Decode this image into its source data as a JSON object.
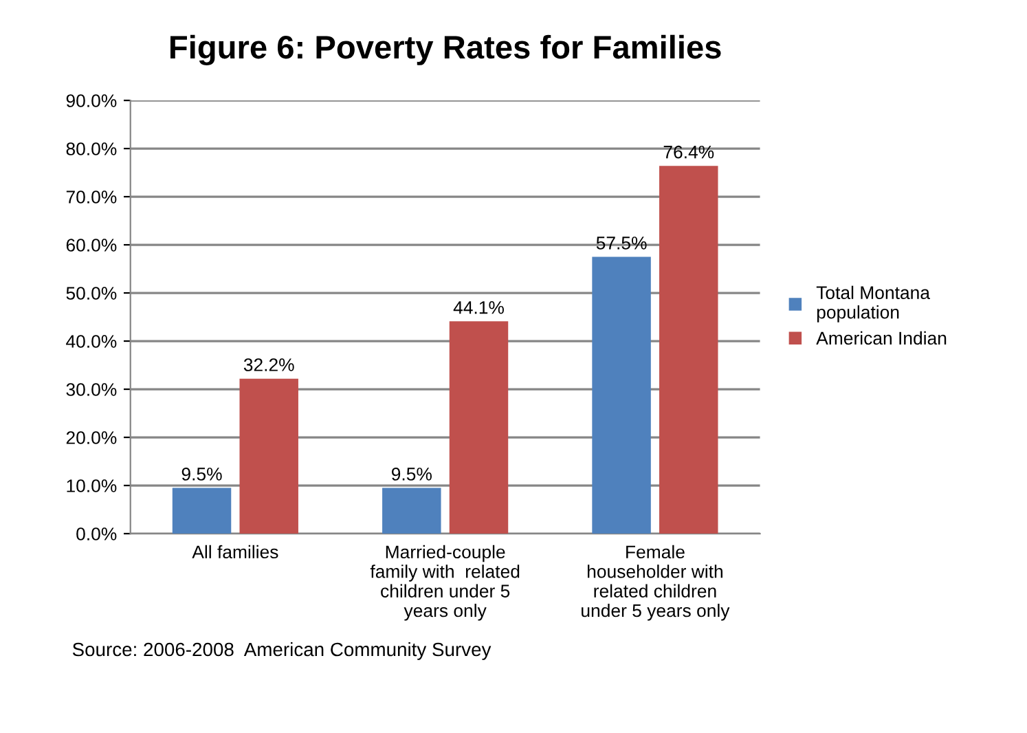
{
  "chart_data": {
    "type": "bar",
    "title": "Figure 6: Poverty Rates for Families",
    "categories": [
      "All families",
      "Married-couple\nfamily with  related\nchildren under 5\nyears only",
      "Female\nhouseholder with\nrelated children\nunder 5 years only"
    ],
    "series": [
      {
        "name": "Total Montana\npopulation",
        "color": "#4f81bd",
        "values": [
          9.5,
          9.5,
          57.5
        ],
        "value_labels": [
          "9.5%",
          "9.5%",
          "57.5%"
        ]
      },
      {
        "name": "American Indian",
        "color": "#c0504d",
        "values": [
          32.2,
          44.1,
          76.4
        ],
        "value_labels": [
          "32.2%",
          "44.1%",
          "76.4%"
        ]
      }
    ],
    "ylim": [
      0,
      90
    ],
    "yticks": [
      {
        "value": 0,
        "label": "0.0%"
      },
      {
        "value": 10,
        "label": "10.0%"
      },
      {
        "value": 20,
        "label": "20.0%"
      },
      {
        "value": 30,
        "label": "30.0%"
      },
      {
        "value": 40,
        "label": "40.0%"
      },
      {
        "value": 50,
        "label": "50.0%"
      },
      {
        "value": 60,
        "label": "60.0%"
      },
      {
        "value": 70,
        "label": "70.0%"
      },
      {
        "value": 80,
        "label": "80.0%"
      },
      {
        "value": 90,
        "label": "90.0%"
      }
    ],
    "grid": "y",
    "legend": "right",
    "annotations": [
      "Source: 2006-2008  American Community Survey"
    ]
  }
}
